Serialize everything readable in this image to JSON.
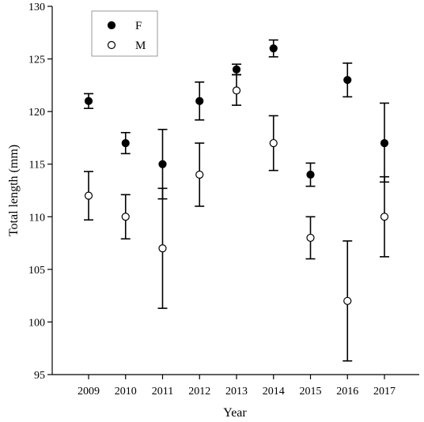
{
  "chart_data": {
    "type": "scatter",
    "title": "",
    "xlabel": "Year",
    "ylabel": "Total length (mm)",
    "categories": [
      "2009",
      "2010",
      "2011",
      "2012",
      "2013",
      "2014",
      "2015",
      "2016",
      "2017"
    ],
    "ylim": [
      95,
      130
    ],
    "yticks": [
      95,
      100,
      105,
      110,
      115,
      120,
      125,
      130
    ],
    "grid": false,
    "legend_position": "top-left",
    "error_bars": true,
    "series": [
      {
        "name": "F",
        "marker": "filled-circle",
        "color": "#000000",
        "values": [
          121,
          117,
          115,
          121,
          124,
          126,
          114,
          123,
          117
        ],
        "lower": [
          120.3,
          116.0,
          111.7,
          119.2,
          123.5,
          125.2,
          112.9,
          121.4,
          113.3
        ],
        "upper": [
          121.7,
          118.0,
          118.3,
          122.8,
          124.5,
          126.8,
          115.1,
          124.6,
          120.8
        ]
      },
      {
        "name": "M",
        "marker": "open-circle",
        "color": "#000000",
        "values": [
          112,
          110,
          107,
          114,
          122,
          117,
          108,
          102,
          110
        ],
        "lower": [
          109.7,
          107.9,
          101.3,
          111.0,
          120.6,
          114.4,
          106.0,
          96.3,
          106.2
        ],
        "upper": [
          114.3,
          112.1,
          112.7,
          117.0,
          123.5,
          119.6,
          110.0,
          107.7,
          113.8
        ]
      }
    ]
  }
}
